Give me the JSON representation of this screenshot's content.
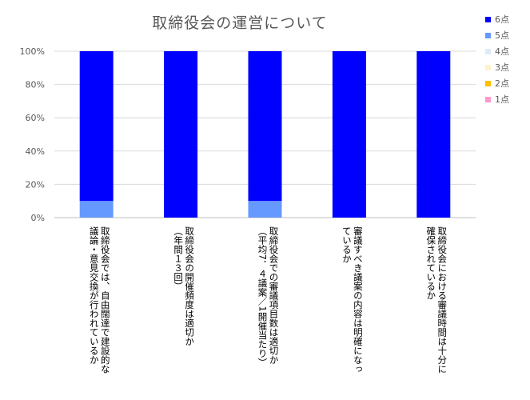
{
  "chart_data": {
    "type": "bar",
    "stacked": true,
    "percent": true,
    "title": "取締役会の運営について",
    "categories": [
      "取締役会では、自由闊達で建設的な\n議論・意見交換が行われているか",
      "取締役会の開催頻度は適切か\n（年間１３回）",
      "取締役会での審議項目数は適切か\n（平均7．４議案／1開催当たり）",
      "審議すべき議案の内容は明確になっ\nているか",
      "取締役会における審議時間は十分に\n確保されているか"
    ],
    "series": [
      {
        "name": "1点",
        "color": "#ff99cc",
        "values": [
          0,
          0,
          0,
          0,
          0
        ]
      },
      {
        "name": "2点",
        "color": "#ffc000",
        "values": [
          0,
          0,
          0,
          0,
          0
        ]
      },
      {
        "name": "3点",
        "color": "#fff2cc",
        "values": [
          0,
          0,
          0,
          0,
          0
        ]
      },
      {
        "name": "4点",
        "color": "#ddebf7",
        "values": [
          0,
          0,
          0,
          0,
          0
        ]
      },
      {
        "name": "5点",
        "color": "#6699ff",
        "values": [
          10,
          0,
          10,
          0,
          0
        ]
      },
      {
        "name": "6点",
        "color": "#0000ff",
        "values": [
          90,
          100,
          90,
          100,
          100
        ]
      }
    ],
    "legend_order": [
      "6点",
      "5点",
      "4点",
      "3点",
      "2点",
      "1点"
    ],
    "ylim": [
      0,
      100
    ],
    "yticks": [
      "0%",
      "20%",
      "40%",
      "60%",
      "80%",
      "100%"
    ],
    "grid": true,
    "legend_position": "right"
  }
}
